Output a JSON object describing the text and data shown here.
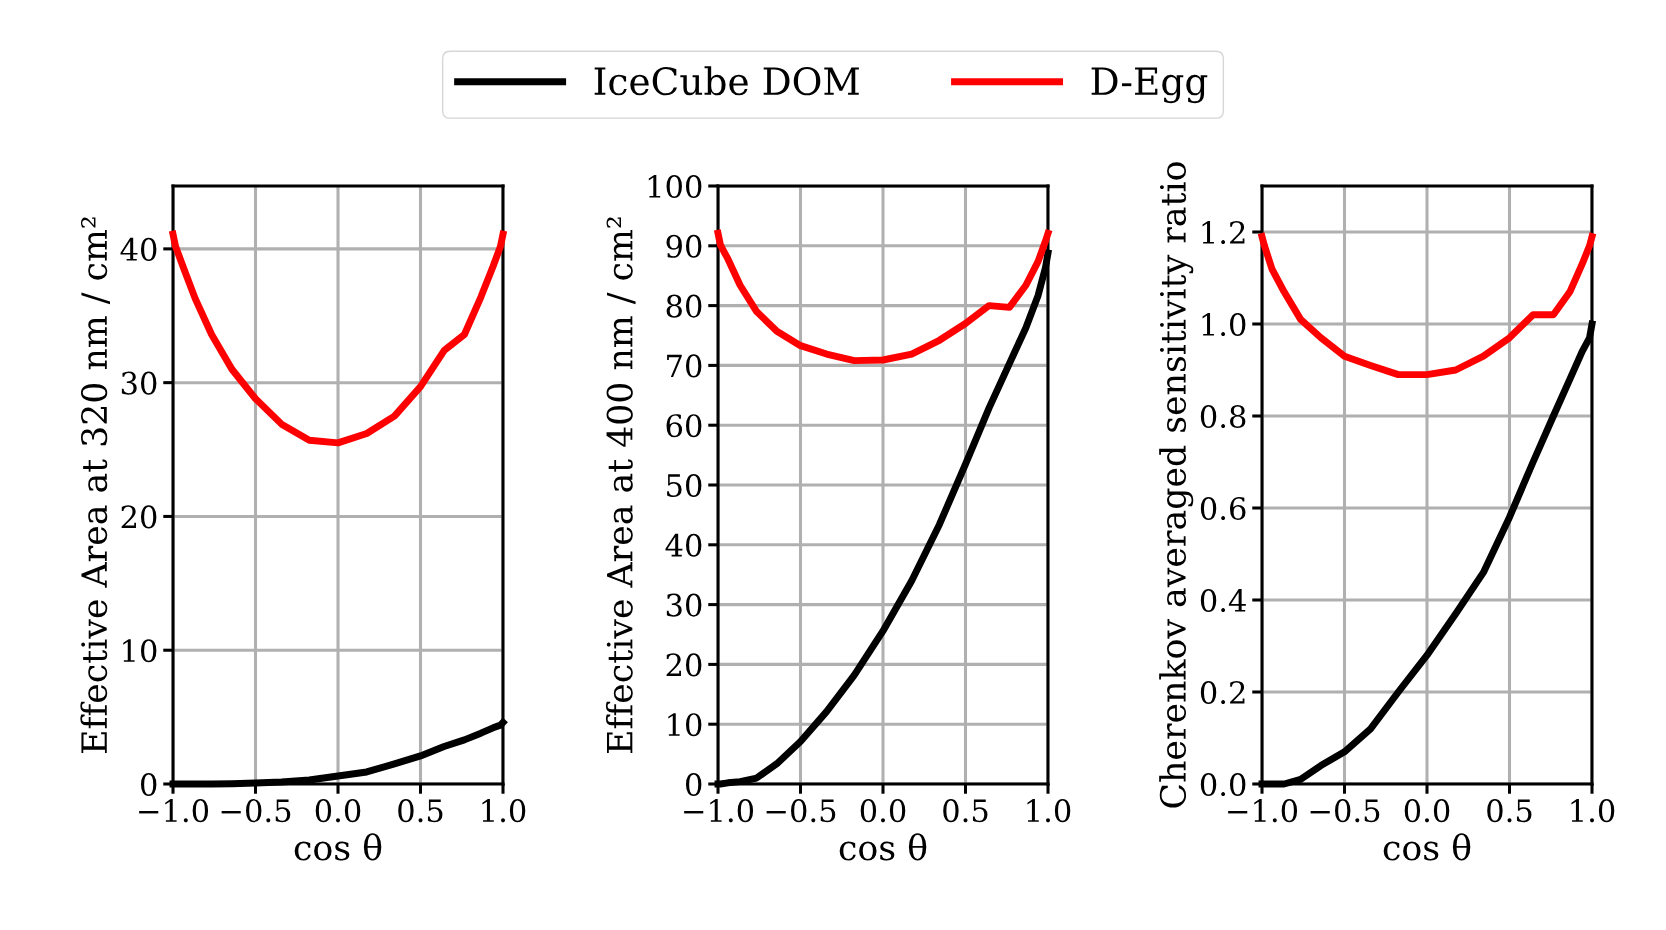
{
  "chart_data": [
    {
      "type": "line",
      "xlabel": "cos θ",
      "ylabel": "Effective Area at 320 nm / cm²",
      "xlim": [
        -1.0,
        1.0
      ],
      "xticks": [
        {
          "value": -1.0,
          "label": "−1.0"
        },
        {
          "value": -0.5,
          "label": "−0.5"
        },
        {
          "value": 0.0,
          "label": "0.0"
        },
        {
          "value": 0.5,
          "label": "0.5"
        },
        {
          "value": 1.0,
          "label": "1.0"
        }
      ],
      "ylim": [
        0,
        44.7
      ],
      "yticks": [
        0,
        10,
        20,
        30,
        40
      ],
      "grid": true,
      "legend": "top",
      "x": [
        -1.0,
        -0.985,
        -0.94,
        -0.866,
        -0.766,
        -0.643,
        -0.5,
        -0.342,
        -0.174,
        0.0,
        0.174,
        0.342,
        0.5,
        0.643,
        0.766,
        0.866,
        0.94,
        0.985,
        1.0
      ],
      "series": [
        {
          "name": "IceCube DOM",
          "color": "#000000",
          "values": [
            0.0,
            0.0,
            0.0,
            0.0,
            0.0,
            0.02,
            0.08,
            0.15,
            0.3,
            0.6,
            0.9,
            1.5,
            2.1,
            2.8,
            3.3,
            3.8,
            4.2,
            4.4,
            4.6
          ]
        },
        {
          "name": "D-Egg",
          "color": "#ff0000",
          "values": [
            41.1,
            40.2,
            38.7,
            36.3,
            33.6,
            31.0,
            28.8,
            26.9,
            25.7,
            25.5,
            26.2,
            27.5,
            29.7,
            32.4,
            33.6,
            36.4,
            38.7,
            40.2,
            41.1
          ]
        }
      ]
    },
    {
      "type": "line",
      "xlabel": "cos θ",
      "ylabel": "Effective Area at 400 nm / cm²",
      "xlim": [
        -1.0,
        1.0
      ],
      "xticks": [
        {
          "value": -1.0,
          "label": "−1.0"
        },
        {
          "value": -0.5,
          "label": "−0.5"
        },
        {
          "value": 0.0,
          "label": "0.0"
        },
        {
          "value": 0.5,
          "label": "0.5"
        },
        {
          "value": 1.0,
          "label": "1.0"
        }
      ],
      "ylim": [
        0,
        100
      ],
      "yticks": [
        0,
        10,
        20,
        30,
        40,
        50,
        60,
        70,
        80,
        90,
        100
      ],
      "grid": true,
      "x": [
        -1.0,
        -0.985,
        -0.94,
        -0.866,
        -0.766,
        -0.643,
        -0.5,
        -0.342,
        -0.174,
        0.0,
        0.174,
        0.342,
        0.5,
        0.643,
        0.766,
        0.866,
        0.94,
        0.985,
        1.0
      ],
      "series": [
        {
          "color": "#000000",
          "values": [
            0.0,
            0.0,
            0.2,
            0.4,
            1.0,
            3.4,
            7.1,
            12.1,
            18.2,
            25.6,
            34.0,
            43.4,
            53.5,
            62.9,
            70.3,
            76.3,
            81.7,
            86.4,
            88.8
          ]
        },
        {
          "color": "#ff0000",
          "values": [
            92.1,
            90.1,
            87.8,
            83.4,
            79.0,
            75.7,
            73.3,
            71.9,
            70.8,
            70.9,
            71.9,
            74.2,
            77.0,
            80.0,
            79.7,
            83.4,
            87.4,
            90.8,
            92.1
          ]
        }
      ]
    },
    {
      "type": "line",
      "xlabel": "cos θ",
      "ylabel": "Cherenkov averaged sensitivity ratio",
      "xlim": [
        -1.0,
        1.0
      ],
      "xticks": [
        {
          "value": -1.0,
          "label": "−1.0"
        },
        {
          "value": -0.5,
          "label": "−0.5"
        },
        {
          "value": 0.0,
          "label": "0.0"
        },
        {
          "value": 0.5,
          "label": "0.5"
        },
        {
          "value": 1.0,
          "label": "1.0"
        }
      ],
      "ylim": [
        0,
        1.3
      ],
      "yticks": [
        {
          "value": 0.0,
          "label": "0.0"
        },
        {
          "value": 0.2,
          "label": "0.2"
        },
        {
          "value": 0.4,
          "label": "0.4"
        },
        {
          "value": 0.6,
          "label": "0.6"
        },
        {
          "value": 0.8,
          "label": "0.8"
        },
        {
          "value": 1.0,
          "label": "1.0"
        },
        {
          "value": 1.2,
          "label": "1.2"
        }
      ],
      "grid": true,
      "x": [
        -1.0,
        -0.985,
        -0.94,
        -0.866,
        -0.766,
        -0.643,
        -0.5,
        -0.342,
        -0.174,
        0.0,
        0.174,
        0.342,
        0.5,
        0.643,
        0.766,
        0.866,
        0.94,
        0.985,
        1.0
      ],
      "series": [
        {
          "color": "#000000",
          "values": [
            0.0,
            0.0,
            0.0,
            0.0,
            0.01,
            0.04,
            0.07,
            0.12,
            0.2,
            0.28,
            0.37,
            0.46,
            0.58,
            0.7,
            0.8,
            0.88,
            0.94,
            0.97,
            1.0
          ]
        },
        {
          "color": "#ff0000",
          "values": [
            1.19,
            1.17,
            1.12,
            1.07,
            1.01,
            0.97,
            0.93,
            0.91,
            0.89,
            0.89,
            0.9,
            0.93,
            0.97,
            1.02,
            1.02,
            1.07,
            1.13,
            1.17,
            1.19
          ]
        }
      ]
    }
  ]
}
